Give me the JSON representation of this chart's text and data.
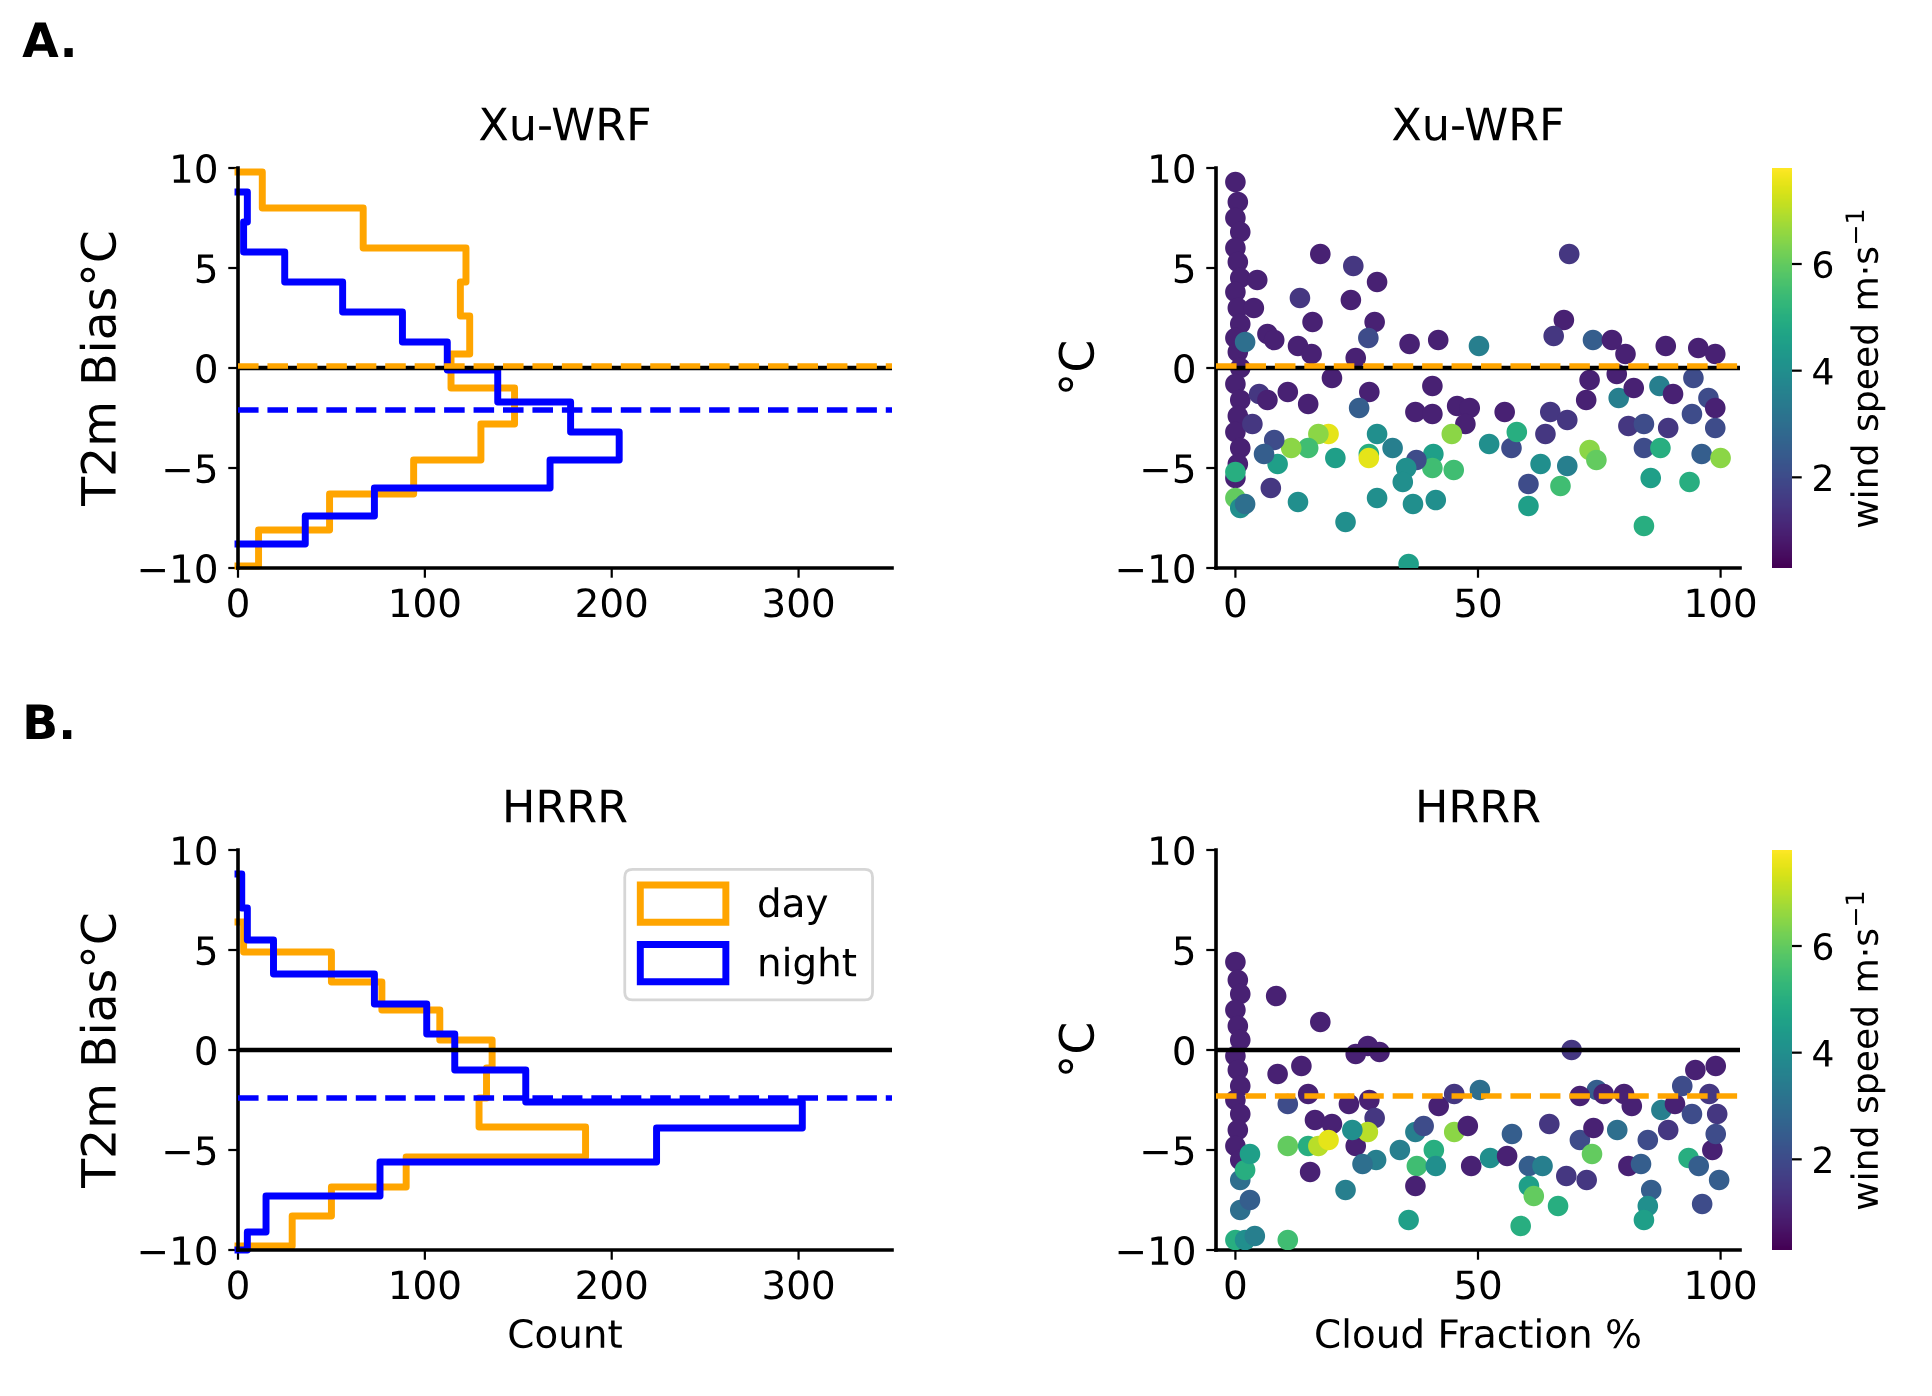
{
  "chart_data": [
    {
      "type": "line",
      "title": "Xu-WRF",
      "ylabel": "T2m Bias°C",
      "annotations": [
        "A."
      ],
      "xlim": [
        0,
        350
      ],
      "xticks": [
        0,
        100,
        200,
        300
      ],
      "ylim": [
        -10,
        10
      ],
      "yticks": [
        -10,
        -5,
        0,
        5,
        10
      ],
      "series": [
        {
          "color": "#ffa500",
          "x": [
            0,
            11,
            11,
            49,
            49,
            94,
            94,
            130,
            130,
            148,
            148,
            114,
            114,
            124,
            124,
            119,
            119,
            122,
            122,
            67,
            67,
            13,
            13,
            0
          ],
          "values": [
            -9.9,
            -9.9,
            -8.1,
            -8.1,
            -6.3,
            -6.3,
            -4.6,
            -4.6,
            -2.8,
            -2.8,
            -1.0,
            -1.0,
            0.7,
            0.7,
            2.6,
            2.6,
            4.3,
            4.3,
            6.0,
            6.0,
            8.0,
            8.0,
            9.8,
            9.8
          ]
        },
        {
          "color": "#0000ff",
          "x": [
            0,
            36,
            36,
            73,
            73,
            167,
            167,
            204,
            204,
            178,
            178,
            139,
            139,
            112,
            112,
            88,
            88,
            56,
            56,
            25,
            25,
            3,
            3,
            5,
            5,
            0
          ],
          "values": [
            -8.8,
            -8.8,
            -7.4,
            -7.4,
            -6.0,
            -6.0,
            -4.6,
            -4.6,
            -3.2,
            -3.2,
            -1.7,
            -1.7,
            -0.1,
            -0.1,
            1.3,
            1.3,
            2.8,
            2.8,
            4.3,
            4.3,
            5.8,
            5.8,
            7.3,
            7.3,
            8.8,
            8.8
          ]
        }
      ],
      "ref_lines": [
        {
          "axis": "y",
          "value": 0,
          "color": "#000000",
          "line_style": "solid"
        },
        {
          "axis": "y",
          "value": 0.1,
          "color": "#ffa500",
          "line_style": "dashed"
        },
        {
          "axis": "y",
          "value": -2.1,
          "color": "#0000ff",
          "line_style": "dashed"
        }
      ]
    },
    {
      "type": "scatter",
      "title": "Xu-WRF",
      "ylabel": "°C",
      "clabel": "wind speed m·s$^{−1}$",
      "clim": [
        0.3,
        7.8
      ],
      "cticks": [
        2,
        4,
        6
      ],
      "marker": "circle",
      "xlim": [
        -4,
        104
      ],
      "xticks": [
        0,
        50,
        100
      ],
      "ylim": [
        -10,
        10
      ],
      "yticks": [
        -10,
        -5,
        0,
        5,
        10
      ],
      "x": [
        0,
        0.5,
        0,
        1,
        0,
        0.5,
        1,
        0,
        0.5,
        1,
        0,
        0.5,
        1,
        0,
        1,
        0.5,
        0,
        1,
        0.5,
        0,
        0,
        0,
        1,
        2,
        2,
        17.5,
        24.3,
        23.8,
        29.2,
        13.3,
        15.9,
        28.7,
        27.4,
        12.9,
        15.7,
        24.8,
        35.9,
        41.8,
        50.2,
        68.8,
        67.7,
        65.6,
        73.7,
        77.6,
        80.4,
        88.7,
        95.4,
        98.9,
        19.9,
        27.6,
        15.0,
        25.5,
        10.8,
        37.1,
        40.6,
        40.6,
        45.7,
        48.3,
        47.4,
        55.5,
        64.9,
        63.9,
        68.4,
        72.3,
        73.0,
        78.6,
        79.0,
        82.1,
        87.4,
        90.2,
        94.4,
        97.5,
        98.9,
        81.0,
        84.2,
        89.2,
        94.1,
        98.9,
        96.1,
        100,
        84.2,
        87.6,
        85.6,
        84.2,
        93.6,
        73.0,
        74.4,
        68.4,
        67.0,
        60.4,
        60.4,
        62.9,
        56.9,
        58.0,
        52.3,
        44.6,
        45.0,
        40.8,
        41.3,
        40.6,
        36.6,
        37.3,
        35.7,
        35.2,
        34.5,
        32.4,
        29.2,
        29.2,
        27.5,
        27.5,
        20.6,
        19.2,
        17.1,
        15.0,
        22.7,
        12.9,
        11.5,
        8.0,
        8.7,
        7.3,
        5.9,
        4.9,
        6.6,
        6.6,
        8.0,
        4.5,
        3.8,
        3.5
      ],
      "values": [
        9.3,
        8.3,
        7.5,
        6.8,
        6,
        5.3,
        4.5,
        3.8,
        3,
        2.2,
        1.5,
        0.8,
        0,
        -0.8,
        -1.6,
        -2.4,
        -3.2,
        -4,
        -4.8,
        -5.5,
        -5.2,
        -6.5,
        -7,
        -6.8,
        1.3,
        5.7,
        5.1,
        3.4,
        4.3,
        3.5,
        2.3,
        2.3,
        1.5,
        1.1,
        0.7,
        0.5,
        1.2,
        1.4,
        1.1,
        5.7,
        2.4,
        1.6,
        1.4,
        1.4,
        0.7,
        1.1,
        1.0,
        0.7,
        -0.5,
        -1.2,
        -1.8,
        -2.0,
        -1.2,
        -2.2,
        -2.3,
        -0.9,
        -1.9,
        -2.0,
        -2.8,
        -2.2,
        -2.2,
        -3.3,
        -2.6,
        -1.6,
        -0.6,
        -0.3,
        -1.5,
        -1.0,
        -0.9,
        -1.3,
        -0.5,
        -1.5,
        -2.0,
        -2.9,
        -2.8,
        -3.0,
        -2.3,
        -3.0,
        -4.3,
        -4.5,
        -4.0,
        -4.0,
        -5.5,
        -7.9,
        -5.7,
        -4.1,
        -4.6,
        -4.9,
        -5.9,
        -5.8,
        -6.9,
        -4.8,
        -4.0,
        -3.2,
        -3.8,
        -3.3,
        -5.1,
        -4.3,
        -6.6,
        -5.0,
        -6.8,
        -4.6,
        -9.8,
        -5.0,
        -5.7,
        -4.0,
        -3.3,
        -6.5,
        -4.3,
        -4.5,
        -4.5,
        -3.3,
        -3.3,
        -4.0,
        -7.7,
        -6.7,
        -4.0,
        -3.6,
        -4.8,
        -6.0,
        -4.3,
        -1.3,
        -1.6,
        1.7,
        1.4,
        4.4,
        3.0,
        -2.8
      ],
      "cvalues": [
        1,
        1,
        1,
        1,
        1,
        1,
        1,
        1,
        1,
        1,
        1,
        1,
        1,
        1,
        1,
        1,
        1,
        1,
        1,
        1,
        5,
        6,
        4,
        3,
        3,
        1,
        1.5,
        1,
        1,
        1.5,
        1,
        1,
        2,
        1,
        1,
        1,
        1,
        1,
        3.5,
        1.5,
        1,
        1.5,
        2.5,
        1,
        1,
        1,
        1,
        1,
        1,
        1,
        1,
        2.5,
        1,
        1,
        1,
        1,
        1,
        1,
        1,
        1,
        1.5,
        1.5,
        1.5,
        1,
        1,
        1,
        3.5,
        1,
        3.5,
        1,
        2,
        2,
        1,
        1.5,
        2,
        1.5,
        2,
        2,
        2.5,
        6.5,
        2,
        5,
        4.5,
        5,
        5,
        6.5,
        6,
        3.5,
        5.5,
        2,
        4.5,
        4,
        2,
        5,
        4,
        6.5,
        5.5,
        4.5,
        4,
        5.5,
        4,
        2,
        4.5,
        4,
        4,
        3.5,
        4,
        4,
        5,
        7.5,
        4.5,
        7.5,
        6.5,
        5.5,
        4,
        4,
        6.5,
        2,
        4.5,
        1.5,
        2.5,
        1.5,
        1,
        1,
        1,
        1,
        1,
        1.5
      ],
      "ref_lines": [
        {
          "axis": "y",
          "value": 0,
          "color": "#000000",
          "line_style": "solid"
        },
        {
          "axis": "y",
          "value": 0.1,
          "color": "#ffa500",
          "line_style": "dashed"
        }
      ]
    },
    {
      "type": "line",
      "title": "HRRR",
      "xlabel": "Count",
      "ylabel": "T2m Bias°C",
      "annotations": [
        "B."
      ],
      "legend": "top right",
      "xlim": [
        0,
        350
      ],
      "xticks": [
        0,
        100,
        200,
        300
      ],
      "ylim": [
        -10,
        10
      ],
      "yticks": [
        -10,
        -5,
        0,
        5,
        10
      ],
      "series": [
        {
          "name": "day",
          "color": "#ffa500",
          "x": [
            0,
            29,
            29,
            50,
            50,
            90,
            90,
            186,
            186,
            129,
            129,
            133,
            133,
            136,
            136,
            108,
            108,
            77,
            77,
            50,
            50,
            3,
            3,
            0
          ],
          "values": [
            -9.8,
            -9.8,
            -8.3,
            -8.3,
            -6.85,
            -6.85,
            -5.35,
            -5.35,
            -3.85,
            -3.85,
            -2.4,
            -2.4,
            -0.9,
            -0.9,
            0.5,
            0.5,
            2.0,
            2.0,
            3.4,
            3.4,
            4.9,
            4.9,
            6.4,
            6.4
          ]
        },
        {
          "name": "night",
          "color": "#0000ff",
          "x": [
            0,
            5,
            5,
            15,
            15,
            76,
            76,
            224,
            224,
            302,
            302,
            154,
            154,
            116,
            116,
            101,
            101,
            73,
            73,
            19,
            19,
            5,
            5,
            2,
            2,
            0
          ],
          "values": [
            -10,
            -10,
            -9.1,
            -9.1,
            -7.3,
            -7.3,
            -5.6,
            -5.6,
            -3.9,
            -3.9,
            -2.6,
            -2.6,
            -1.0,
            -1.0,
            0.8,
            0.8,
            2.3,
            2.3,
            3.8,
            3.8,
            5.5,
            5.5,
            7.1,
            7.1,
            8.8,
            8.8
          ]
        }
      ],
      "ref_lines": [
        {
          "axis": "y",
          "value": 0,
          "color": "#000000",
          "line_style": "solid"
        },
        {
          "axis": "y",
          "value": -2.4,
          "color": "#0000ff",
          "line_style": "dashed"
        }
      ]
    },
    {
      "type": "scatter",
      "title": "HRRR",
      "xlabel": "Cloud Fraction %",
      "ylabel": "°C",
      "clabel": "wind speed m·s$^{−1}$",
      "clim": [
        0.3,
        7.8
      ],
      "cticks": [
        2,
        4,
        6
      ],
      "marker": "circle",
      "xlim": [
        -4,
        104
      ],
      "xticks": [
        0,
        50,
        100
      ],
      "ylim": [
        -10,
        10
      ],
      "yticks": [
        -10,
        -5,
        0,
        5,
        10
      ],
      "x": [
        0,
        0.5,
        1,
        0,
        0.5,
        1,
        0,
        0.5,
        1,
        0,
        1,
        0.5,
        0,
        1,
        1,
        1,
        0,
        2,
        3,
        4,
        2,
        3,
        8.4,
        17.5,
        13.6,
        8.7,
        24.8,
        27.3,
        29.7,
        10.8,
        15.0,
        16.4,
        19.9,
        23.4,
        27.6,
        28.7,
        24.8,
        29.0,
        26.2,
        22.7,
        15.4,
        10.8,
        15.0,
        17.1,
        19.2,
        27.3,
        10.8,
        24.1,
        33.9,
        35.7,
        37.1,
        37.4,
        37.1,
        38.8,
        40.9,
        41.3,
        41.9,
        45.1,
        45.1,
        47.9,
        50.4,
        48.6,
        52.5,
        56.0,
        57.0,
        60.5,
        60.5,
        61.5,
        58.8,
        63.3,
        64.7,
        66.5,
        68.2,
        69.3,
        71.0,
        72.4,
        73.5,
        73.8,
        74.5,
        71.0,
        75.9,
        78.7,
        80.1,
        81.0,
        81.7,
        83.6,
        85.0,
        85.7,
        85.0,
        84.2,
        87.8,
        89.2,
        90.6,
        93.4,
        94.1,
        94.8,
        95.5,
        96.2,
        98.3,
        99.0,
        99.3,
        99.7,
        99.0,
        97.7,
        92.1
      ],
      "values": [
        4.4,
        3.5,
        2.8,
        2,
        1.2,
        0.5,
        -0.3,
        -1,
        -1.8,
        -2.5,
        -3.2,
        -4,
        -4.8,
        -5.5,
        -6.5,
        -8,
        -9.5,
        -9.5,
        -7.5,
        -9.3,
        -6,
        -5.2,
        2.7,
        1.4,
        -0.8,
        -1.2,
        -0.2,
        0.2,
        -0.1,
        -2.7,
        -2.2,
        -3.5,
        -3.7,
        -2.7,
        -2.5,
        -3.4,
        -4.8,
        -5.5,
        -5.7,
        -7.0,
        -6.1,
        -4.8,
        -4.8,
        -4.8,
        -4.5,
        -4.1,
        -9.5,
        -4.0,
        -5.0,
        -8.5,
        -4.1,
        -5.8,
        -6.8,
        -3.8,
        -5.0,
        -5.8,
        -2.8,
        -4.1,
        -2.2,
        -3.8,
        -2.0,
        -5.8,
        -5.4,
        -5.3,
        -4.2,
        -5.8,
        -6.8,
        -7.3,
        -8.8,
        -5.8,
        -3.7,
        -7.8,
        -6.3,
        0.0,
        -4.5,
        -6.5,
        -5.2,
        -3.9,
        -2.0,
        -2.3,
        -2.2,
        -4.0,
        -2.2,
        -5.8,
        -2.8,
        -5.7,
        -4.5,
        -7.0,
        -7.8,
        -8.5,
        -3.0,
        -4.0,
        -2.7,
        -5.4,
        -3.2,
        -1.0,
        -5.8,
        -7.7,
        -5.0,
        -0.8,
        -3.2,
        -6.5,
        -4.2,
        -2.2,
        -1.8
      ],
      "cvalues": [
        1,
        1,
        1,
        1,
        1,
        1,
        1,
        1,
        1,
        1,
        1,
        1,
        1,
        1,
        3,
        3,
        5,
        4,
        2.5,
        3.5,
        5,
        4.5,
        1,
        1,
        1,
        1,
        1,
        1,
        1,
        2,
        1,
        1,
        1,
        1,
        1,
        1.5,
        1,
        3.5,
        3,
        3.5,
        1,
        6,
        5,
        7,
        7.5,
        7,
        5.5,
        4,
        3.5,
        4.5,
        3.5,
        5.5,
        1,
        2,
        5,
        4,
        1,
        6.5,
        1.5,
        1,
        3,
        1,
        4,
        1,
        2.5,
        2.5,
        4.5,
        6,
        5,
        3.5,
        1.5,
        5,
        1.5,
        1.5,
        2,
        1.5,
        6,
        1,
        2.5,
        1,
        1,
        3,
        1,
        1,
        1,
        2.5,
        2,
        2.5,
        4,
        4.5,
        3.5,
        1.5,
        1,
        5,
        2,
        1,
        2.5,
        2,
        1,
        1,
        1.5,
        2.5,
        2,
        1.5,
        2
      ],
      "ref_lines": [
        {
          "axis": "y",
          "value": 0,
          "color": "#000000",
          "line_style": "solid"
        },
        {
          "axis": "y",
          "value": -2.3,
          "color": "#ffa500",
          "line_style": "dashed"
        }
      ]
    }
  ]
}
